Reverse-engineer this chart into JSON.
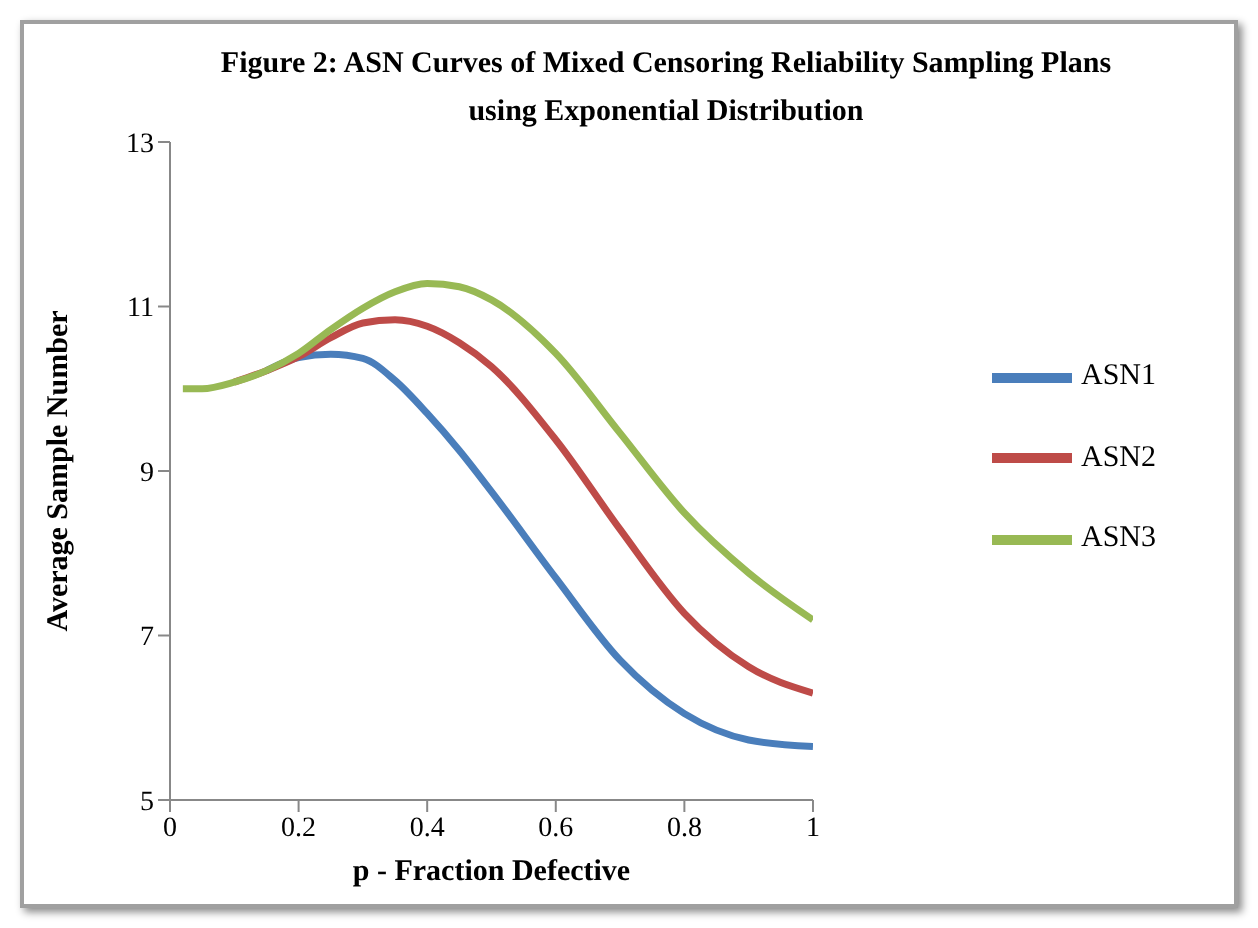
{
  "chart_data": {
    "type": "line",
    "title": "Figure 2: ASN Curves of Mixed  Censoring Reliability Sampling Plans using Exponential  Distribution",
    "xlabel": "p - Fraction Defective",
    "ylabel": "Average  Sample  Number",
    "x": [
      0.02,
      0.05,
      0.1,
      0.15,
      0.2,
      0.25,
      0.3,
      0.35,
      0.4,
      0.45,
      0.5,
      0.6,
      0.7,
      0.8,
      0.9,
      1.0
    ],
    "series": [
      {
        "name": "ASN1",
        "color": "#4a7ebb",
        "values": [
          null,
          null,
          null,
          10.22,
          10.38,
          10.42,
          10.37,
          10.1,
          9.7,
          9.25,
          8.75,
          7.7,
          6.7,
          6.05,
          5.73,
          5.65
        ]
      },
      {
        "name": "ASN2",
        "color": "#be4b48",
        "values": [
          null,
          null,
          10.08,
          10.22,
          10.39,
          10.62,
          10.8,
          10.84,
          10.76,
          10.56,
          10.27,
          9.38,
          8.29,
          7.27,
          6.62,
          6.3
        ]
      },
      {
        "name": "ASN3",
        "color": "#98b954",
        "values": [
          10.0,
          10.0,
          10.08,
          10.22,
          10.43,
          10.72,
          10.98,
          11.18,
          11.28,
          11.24,
          11.08,
          10.43,
          9.46,
          8.49,
          7.76,
          7.19
        ]
      }
    ],
    "xlim": [
      0,
      1
    ],
    "xticks": [
      0,
      0.2,
      0.4,
      0.6,
      0.8,
      1
    ],
    "ylim": [
      5,
      13
    ],
    "yticks": [
      5,
      7,
      9,
      11,
      13
    ],
    "grid": false,
    "legend": "right",
    "marker": "none",
    "line_style": "solid"
  }
}
